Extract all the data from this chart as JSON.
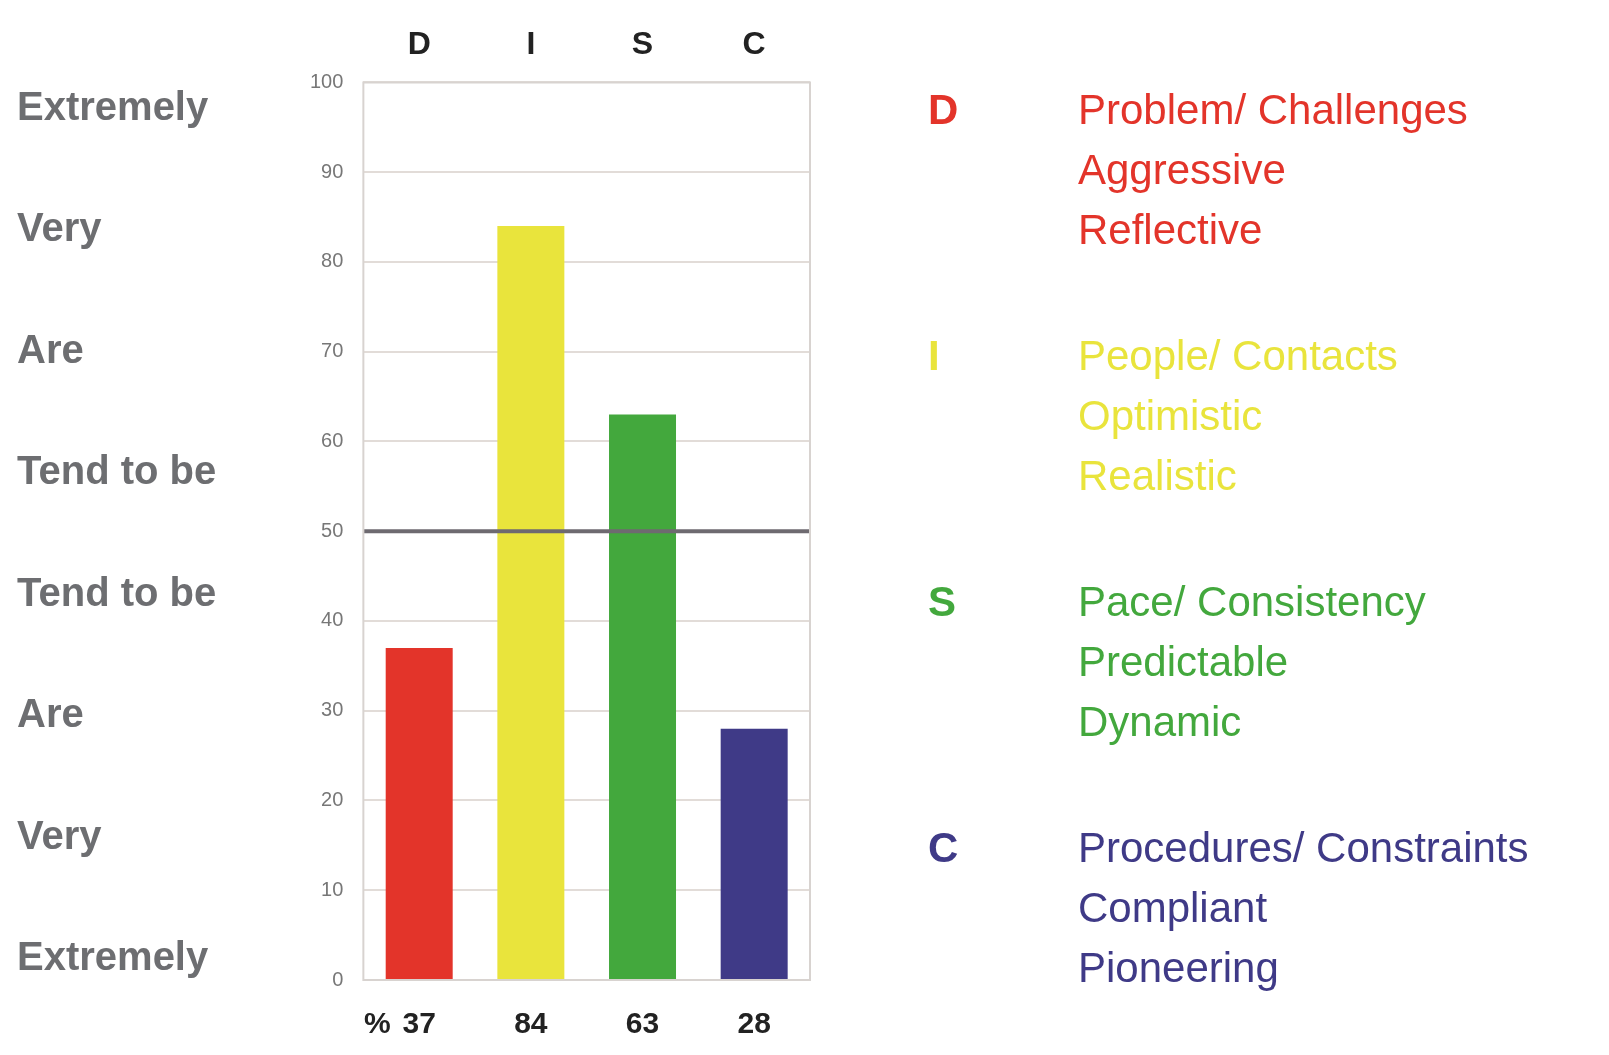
{
  "chart_data": {
    "type": "bar",
    "categories": [
      "D",
      "I",
      "S",
      "C"
    ],
    "values": [
      37,
      84,
      63,
      28
    ],
    "colors": [
      "#e3342a",
      "#e9e43c",
      "#43a83d",
      "#3f3a87"
    ],
    "ylim": [
      0,
      100
    ],
    "yticks": [
      0,
      10,
      20,
      30,
      40,
      50,
      60,
      70,
      80,
      90,
      100
    ],
    "grid": "y",
    "data_labels": true,
    "ref_lines": [
      {
        "axis": "y",
        "value": 50,
        "color": "#6e6a70"
      }
    ],
    "annotations": [
      "Extremely",
      "Very",
      "Are",
      "Tend to be",
      "Tend to be",
      "Are",
      "Very",
      "Extremely",
      "%",
      "Problem/ Challenges\nAggressive\nReflective",
      "People/ Contacts\nOptimistic\nRealistic",
      "Pace/ Consistency\nPredictable\nDynamic",
      "Procedures/ Constraints\nCompliant\nPioneering"
    ]
  }
}
